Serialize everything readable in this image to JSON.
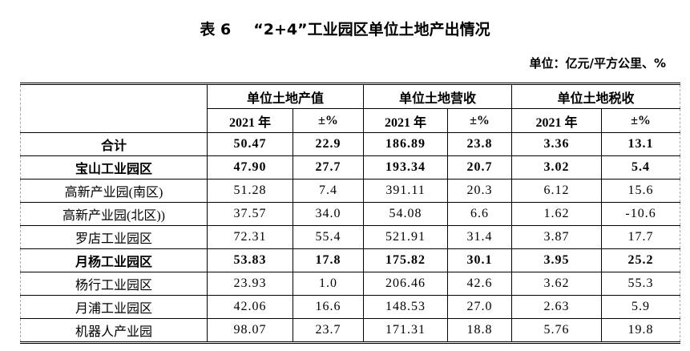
{
  "title": {
    "prefix": "表 6",
    "text": "“2+4”工业园区单位土地产出情况"
  },
  "unit_note": "单位：亿元/平方公里、%",
  "table": {
    "groups": [
      {
        "label": "单位土地产值"
      },
      {
        "label": "单位土地营收"
      },
      {
        "label": "单位土地税收"
      }
    ],
    "subheaders": [
      "2021 年",
      "±%",
      "2021 年",
      "±%",
      "2021 年",
      "±%"
    ],
    "rows": [
      {
        "label": "合计",
        "level": 1,
        "bold": true,
        "values": [
          "50.47",
          "22.9",
          "186.89",
          "23.8",
          "3.36",
          "13.1"
        ]
      },
      {
        "label": "宝山工业园区",
        "level": 2,
        "bold": true,
        "values": [
          "47.90",
          "27.7",
          "193.34",
          "20.7",
          "3.02",
          "5.4"
        ]
      },
      {
        "label": "高新产业园(南区)",
        "level": 3,
        "bold": false,
        "values": [
          "51.28",
          "7.4",
          "391.11",
          "20.3",
          "6.12",
          "15.6"
        ]
      },
      {
        "label": "高新产业园(北区))",
        "level": 3,
        "bold": false,
        "values": [
          "37.57",
          "34.0",
          "54.08",
          "6.6",
          "1.62",
          "-10.6"
        ]
      },
      {
        "label": "罗店工业园区",
        "level": 3,
        "bold": false,
        "values": [
          "72.31",
          "55.4",
          "521.91",
          "31.4",
          "3.87",
          "17.7"
        ]
      },
      {
        "label": "月杨工业园区",
        "level": 2,
        "bold": true,
        "values": [
          "53.83",
          "17.8",
          "175.82",
          "30.1",
          "3.95",
          "25.2"
        ]
      },
      {
        "label": "杨行工业园区",
        "level": 3,
        "bold": false,
        "values": [
          "23.93",
          "1.0",
          "206.46",
          "42.6",
          "3.62",
          "55.3"
        ]
      },
      {
        "label": "月浦工业园区",
        "level": 3,
        "bold": false,
        "values": [
          "42.06",
          "16.6",
          "148.53",
          "27.0",
          "2.63",
          "5.9"
        ]
      },
      {
        "label": "机器人产业园",
        "level": 3,
        "bold": false,
        "values": [
          "98.07",
          "23.7",
          "171.31",
          "18.8",
          "5.76",
          "19.8"
        ]
      }
    ]
  }
}
